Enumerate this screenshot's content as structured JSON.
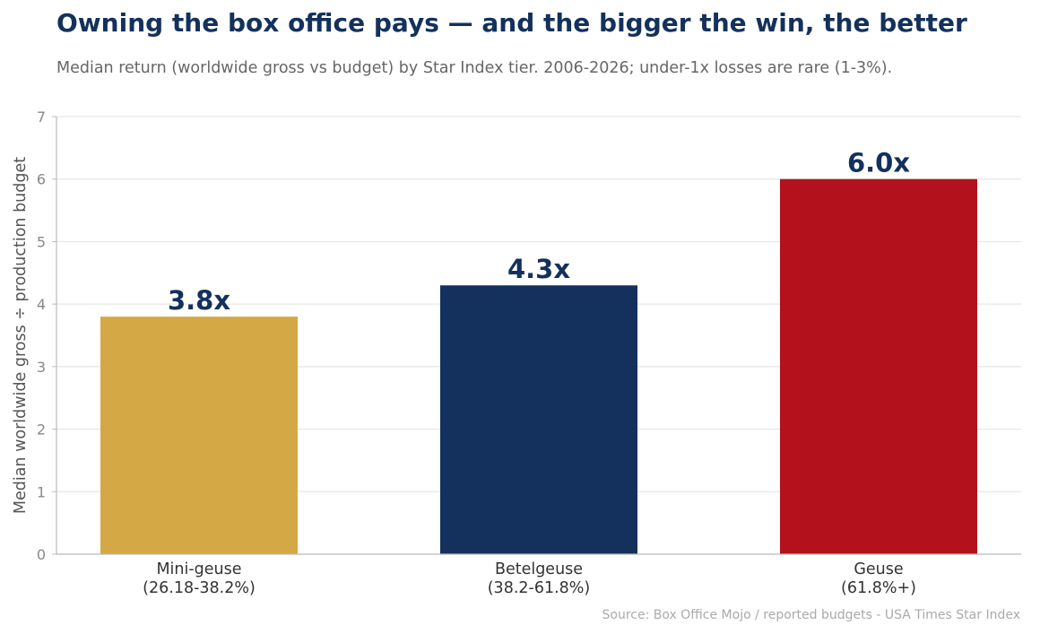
{
  "chart_data": {
    "type": "bar",
    "title": "Owning the box office pays — and the bigger the win, the better",
    "subtitle": "Median return (worldwide gross vs budget) by Star Index tier. 2006-2026; under-1x losses are rare (1-3%).",
    "source": "Source: Box Office Mojo / reported budgets - USA Times Star Index",
    "ylabel": "Median worldwide gross ÷ production budget",
    "xlabel": "",
    "ylim": [
      0,
      7
    ],
    "yticks": [
      0,
      1,
      2,
      3,
      4,
      5,
      6,
      7
    ],
    "grid": true,
    "categories": [
      [
        "Mini-geuse",
        "(26.18-38.2%)"
      ],
      [
        "Betelgeuse",
        "(38.2-61.8%)"
      ],
      [
        "Geuse",
        "(61.8%+)"
      ]
    ],
    "values": [
      3.8,
      4.3,
      6.0
    ],
    "value_labels": [
      "3.8x",
      "4.3x",
      "6.0x"
    ],
    "colors": [
      "#d4a945",
      "#13315c",
      "#b3121c"
    ]
  }
}
